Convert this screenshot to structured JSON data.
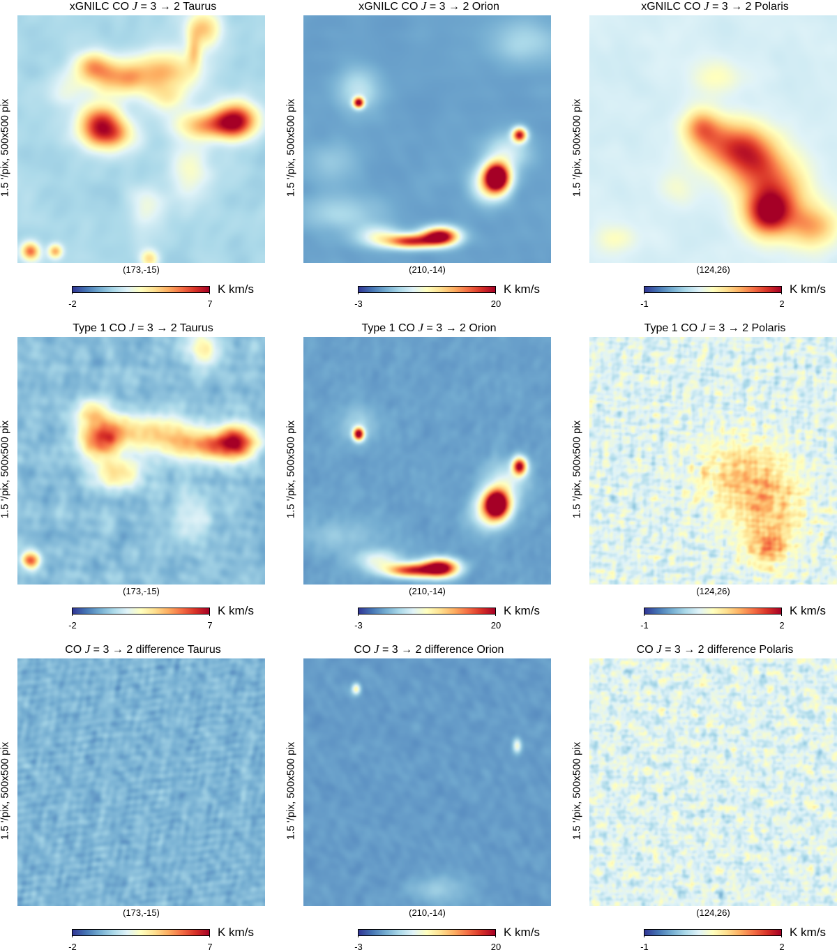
{
  "colormap": {
    "stops": [
      "#313695",
      "#4575b4",
      "#74add1",
      "#abd9e9",
      "#e0f3f8",
      "#ffffbf",
      "#fee090",
      "#fdae61",
      "#f46d43",
      "#d73027",
      "#a50026"
    ]
  },
  "common": {
    "unit": "K km/s",
    "ylabel": "1.5 '/pix,   500x500 pix"
  },
  "panels": [
    {
      "title_prefix": "xGNILC CO ",
      "title_j": "J",
      "title_suffix": " = 3 → 2 Taurus",
      "center": "(173,-15)",
      "cmin": "-2",
      "cmax": "7",
      "map": {
        "base": 0.3,
        "noise": 0.08,
        "scale": 55,
        "seed": 11,
        "blobs": [
          [
            0.33,
            0.42,
            0.06,
            0.05,
            0.45
          ],
          [
            0.36,
            0.48,
            0.07,
            0.045,
            0.45
          ],
          [
            0.88,
            0.42,
            0.06,
            0.05,
            0.6
          ],
          [
            0.77,
            0.44,
            0.09,
            0.04,
            0.4
          ],
          [
            0.42,
            0.25,
            0.1,
            0.05,
            0.4
          ],
          [
            0.3,
            0.2,
            0.05,
            0.04,
            0.35
          ],
          [
            0.62,
            0.22,
            0.09,
            0.06,
            0.3
          ],
          [
            0.75,
            0.05,
            0.05,
            0.05,
            0.35
          ],
          [
            0.71,
            0.14,
            0.02,
            0.05,
            0.25
          ],
          [
            0.05,
            0.95,
            0.025,
            0.025,
            0.5
          ],
          [
            0.15,
            0.95,
            0.02,
            0.02,
            0.4
          ],
          [
            0.53,
            0.98,
            0.025,
            0.025,
            0.3
          ],
          [
            0.7,
            0.62,
            0.06,
            0.08,
            0.18
          ],
          [
            0.52,
            0.78,
            0.05,
            0.06,
            0.15
          ],
          [
            0.6,
            0.33,
            0.06,
            0.04,
            0.2
          ],
          [
            0.2,
            0.3,
            0.05,
            0.05,
            0.12
          ]
        ]
      }
    },
    {
      "title_prefix": "xGNILC CO ",
      "title_j": "J",
      "title_suffix": " = 3 → 2 Orion",
      "center": "(210,-14)",
      "cmin": "-3",
      "cmax": "20",
      "map": {
        "base": 0.18,
        "noise": 0.04,
        "scale": 60,
        "seed": 23,
        "blobs": [
          [
            0.22,
            0.35,
            0.015,
            0.015,
            0.8
          ],
          [
            0.22,
            0.3,
            0.06,
            0.06,
            0.15
          ],
          [
            0.78,
            0.65,
            0.035,
            0.04,
            1.0
          ],
          [
            0.75,
            0.68,
            0.05,
            0.05,
            0.35
          ],
          [
            0.87,
            0.48,
            0.02,
            0.02,
            0.75
          ],
          [
            0.82,
            0.55,
            0.06,
            0.05,
            0.2
          ],
          [
            0.55,
            0.89,
            0.05,
            0.025,
            0.9
          ],
          [
            0.43,
            0.91,
            0.07,
            0.02,
            0.7
          ],
          [
            0.3,
            0.89,
            0.06,
            0.03,
            0.25
          ],
          [
            0.15,
            0.8,
            0.12,
            0.05,
            0.12
          ],
          [
            0.88,
            0.1,
            0.1,
            0.06,
            0.12
          ],
          [
            0.1,
            0.6,
            0.08,
            0.06,
            0.08
          ]
        ]
      }
    },
    {
      "title_prefix": "xGNILC CO ",
      "title_j": "J",
      "title_suffix": " = 3 → 2 Polaris",
      "center": "(124,26)",
      "cmin": "-1",
      "cmax": "2",
      "map": {
        "base": 0.38,
        "noise": 0.05,
        "scale": 60,
        "seed": 37,
        "blobs": [
          [
            0.55,
            0.52,
            0.1,
            0.07,
            0.35
          ],
          [
            0.65,
            0.58,
            0.08,
            0.08,
            0.35
          ],
          [
            0.75,
            0.72,
            0.09,
            0.1,
            0.4
          ],
          [
            0.72,
            0.8,
            0.06,
            0.06,
            0.45
          ],
          [
            0.9,
            0.85,
            0.07,
            0.06,
            0.3
          ],
          [
            0.45,
            0.45,
            0.05,
            0.05,
            0.3
          ],
          [
            0.5,
            0.25,
            0.07,
            0.05,
            0.12
          ],
          [
            0.1,
            0.9,
            0.06,
            0.04,
            0.12
          ],
          [
            0.35,
            0.7,
            0.05,
            0.05,
            0.08
          ]
        ]
      }
    },
    {
      "title_prefix": "Type 1 CO ",
      "title_j": "J",
      "title_suffix": " = 3 → 2 Taurus",
      "center": "(173,-15)",
      "cmin": "-2",
      "cmax": "7",
      "map": {
        "base": 0.24,
        "noise": 0.16,
        "scale": 30,
        "seed": 51,
        "blobs": [
          [
            0.33,
            0.42,
            0.06,
            0.05,
            0.45
          ],
          [
            0.4,
            0.55,
            0.07,
            0.045,
            0.35
          ],
          [
            0.88,
            0.42,
            0.06,
            0.05,
            0.6
          ],
          [
            0.77,
            0.44,
            0.09,
            0.04,
            0.4
          ],
          [
            0.42,
            0.38,
            0.1,
            0.05,
            0.35
          ],
          [
            0.3,
            0.3,
            0.05,
            0.04,
            0.3
          ],
          [
            0.62,
            0.4,
            0.09,
            0.06,
            0.3
          ],
          [
            0.75,
            0.05,
            0.05,
            0.05,
            0.3
          ],
          [
            0.05,
            0.9,
            0.025,
            0.025,
            0.6
          ],
          [
            0.7,
            0.72,
            0.06,
            0.08,
            0.15
          ]
        ]
      }
    },
    {
      "title_prefix": "Type 1 CO ",
      "title_j": "J",
      "title_suffix": " = 3 → 2 Orion",
      "center": "(210,-14)",
      "cmin": "-3",
      "cmax": "20",
      "map": {
        "base": 0.18,
        "noise": 0.06,
        "scale": 30,
        "seed": 63,
        "blobs": [
          [
            0.22,
            0.39,
            0.015,
            0.018,
            0.85
          ],
          [
            0.22,
            0.35,
            0.05,
            0.05,
            0.12
          ],
          [
            0.78,
            0.67,
            0.035,
            0.04,
            1.0
          ],
          [
            0.75,
            0.7,
            0.05,
            0.05,
            0.35
          ],
          [
            0.87,
            0.52,
            0.02,
            0.025,
            0.8
          ],
          [
            0.82,
            0.58,
            0.06,
            0.05,
            0.2
          ],
          [
            0.55,
            0.93,
            0.05,
            0.025,
            0.9
          ],
          [
            0.43,
            0.94,
            0.07,
            0.02,
            0.7
          ],
          [
            0.3,
            0.9,
            0.06,
            0.03,
            0.25
          ],
          [
            0.15,
            0.8,
            0.12,
            0.05,
            0.08
          ]
        ]
      }
    },
    {
      "title_prefix": "Type 1 CO ",
      "title_j": "J",
      "title_suffix": " = 3 → 2 Polaris",
      "center": "(124,26)",
      "cmin": "-1",
      "cmax": "2",
      "map": {
        "base": 0.4,
        "noise": 0.34,
        "scale": 14,
        "seed": 77,
        "blobs": [
          [
            0.6,
            0.55,
            0.12,
            0.1,
            0.2
          ],
          [
            0.72,
            0.7,
            0.1,
            0.12,
            0.22
          ],
          [
            0.72,
            0.85,
            0.05,
            0.05,
            0.25
          ]
        ]
      }
    },
    {
      "title_prefix": "CO ",
      "title_j": "J",
      "title_suffix": " = 3 → 2 difference Taurus",
      "center": "(173,-15)",
      "cmin": "-2",
      "cmax": "7",
      "map": {
        "base": 0.22,
        "noise": 0.16,
        "scale": 18,
        "seed": 91,
        "blobs": []
      }
    },
    {
      "title_prefix": "CO ",
      "title_j": "J",
      "title_suffix": " = 3 → 2 difference Orion",
      "center": "(210,-14)",
      "cmin": "-3",
      "cmax": "20",
      "map": {
        "base": 0.17,
        "noise": 0.06,
        "scale": 28,
        "seed": 103,
        "blobs": [
          [
            0.21,
            0.12,
            0.012,
            0.015,
            0.35
          ],
          [
            0.86,
            0.35,
            0.012,
            0.02,
            0.3
          ],
          [
            0.55,
            0.93,
            0.08,
            0.04,
            0.1
          ]
        ]
      }
    },
    {
      "title_prefix": "CO ",
      "title_j": "J",
      "title_suffix": " = 3 → 2 difference Polaris",
      "center": "(124,26)",
      "cmin": "-1",
      "cmax": "2",
      "map": {
        "base": 0.4,
        "noise": 0.34,
        "scale": 14,
        "seed": 119,
        "blobs": []
      }
    }
  ]
}
